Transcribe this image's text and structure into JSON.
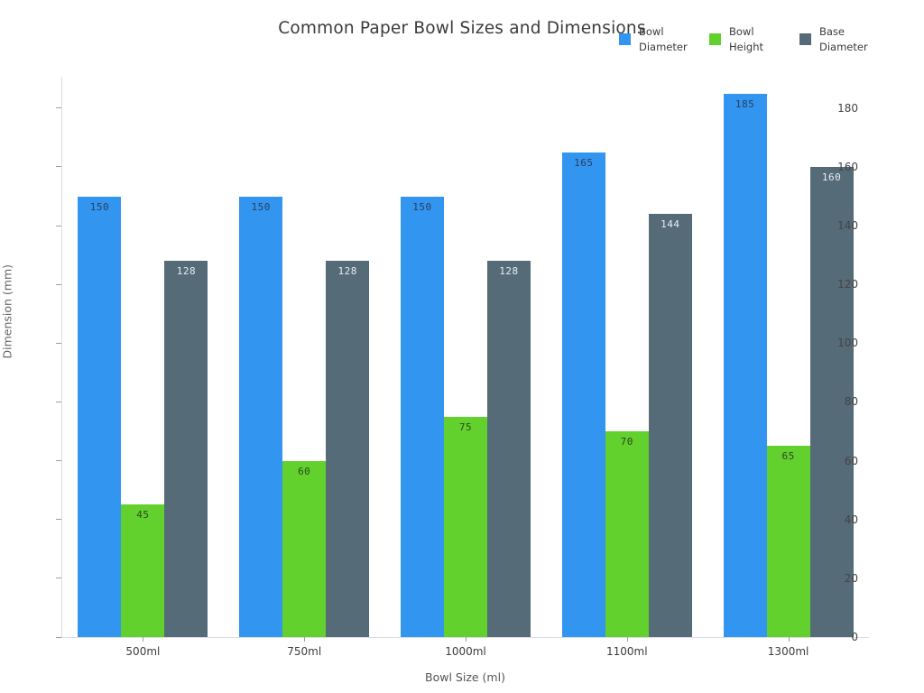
{
  "chart": {
    "title": "Common Paper Bowl Sizes and Dimensions",
    "xlabel": "Bowl Size (ml)",
    "ylabel": "Dimension (mm)"
  },
  "chart_data": {
    "type": "bar",
    "title": "Common Paper Bowl Sizes and Dimensions",
    "xlabel": "Bowl Size (ml)",
    "ylabel": "Dimension (mm)",
    "categories": [
      "500ml",
      "750ml",
      "1000ml",
      "1100ml",
      "1300ml"
    ],
    "series": [
      {
        "name": "Bowl Diameter",
        "values": [
          150,
          150,
          150,
          165,
          185
        ],
        "color": "#3295f0",
        "label_color": "#2a3f5f"
      },
      {
        "name": "Bowl Height",
        "values": [
          45,
          60,
          75,
          70,
          65
        ],
        "color": "#62d02d",
        "label_color": "#2b4a1e"
      },
      {
        "name": "Base Diameter",
        "values": [
          128,
          128,
          128,
          144,
          160
        ],
        "color": "#566b78",
        "label_color": "#e8eef2"
      }
    ],
    "ylim": [
      0,
      191
    ],
    "yticks": [
      0,
      20,
      40,
      60,
      80,
      100,
      120,
      140,
      160,
      180
    ],
    "grid": false,
    "legend_position": "top-right",
    "background": "#ffffff",
    "axis_color": "#d9dde1"
  }
}
